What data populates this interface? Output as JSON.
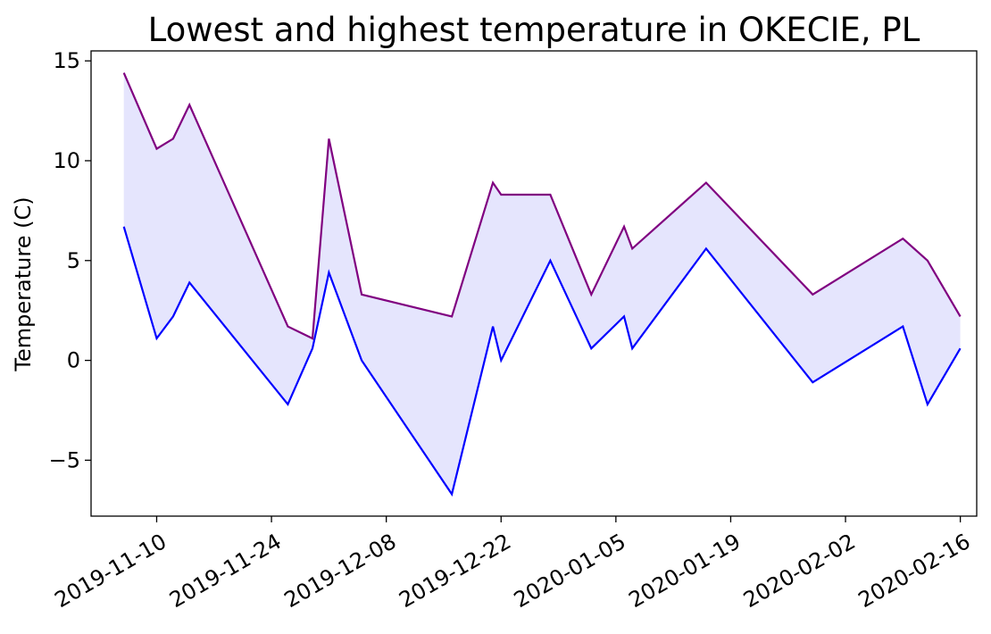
{
  "chart_data": {
    "type": "area",
    "title": "Lowest and highest temperature in OKECIE, PL",
    "xlabel": "",
    "ylabel": "Temperature (C)",
    "ylim": [
      -7.8,
      15.5
    ],
    "xlim": [
      "2019-11-02",
      "2020-02-18"
    ],
    "grid": false,
    "y_ticks": [
      -5,
      0,
      5,
      10,
      15
    ],
    "y_tick_labels": [
      "−5",
      "0",
      "5",
      "10",
      "15"
    ],
    "x_ticks": [
      "2019-11-10",
      "2019-11-24",
      "2019-12-08",
      "2019-12-22",
      "2020-01-05",
      "2020-01-19",
      "2020-02-02",
      "2020-02-16"
    ],
    "x": [
      "2019-11-06",
      "2019-11-10",
      "2019-11-12",
      "2019-11-14",
      "2019-11-26",
      "2019-11-29",
      "2019-12-01",
      "2019-12-05",
      "2019-12-16",
      "2019-12-21",
      "2019-12-22",
      "2019-12-28",
      "2020-01-02",
      "2020-01-06",
      "2020-01-07",
      "2020-01-16",
      "2020-01-29",
      "2020-02-09",
      "2020-02-12",
      "2020-02-16"
    ],
    "series": [
      {
        "role": "highest",
        "color": "#800080",
        "values": [
          14.4,
          10.6,
          11.1,
          12.8,
          1.7,
          1.1,
          11.1,
          3.3,
          2.2,
          8.9,
          8.3,
          8.3,
          3.3,
          6.7,
          5.6,
          8.9,
          3.3,
          6.1,
          5.0,
          2.2
        ]
      },
      {
        "role": "lowest",
        "color": "#0000ff",
        "values": [
          6.7,
          1.1,
          2.2,
          3.9,
          -2.2,
          0.6,
          4.4,
          0.0,
          -6.7,
          1.7,
          0.0,
          5.0,
          0.6,
          2.2,
          0.6,
          5.6,
          -1.1,
          1.7,
          -2.2,
          0.6
        ]
      }
    ],
    "fill_color": "#e5e5fd"
  }
}
